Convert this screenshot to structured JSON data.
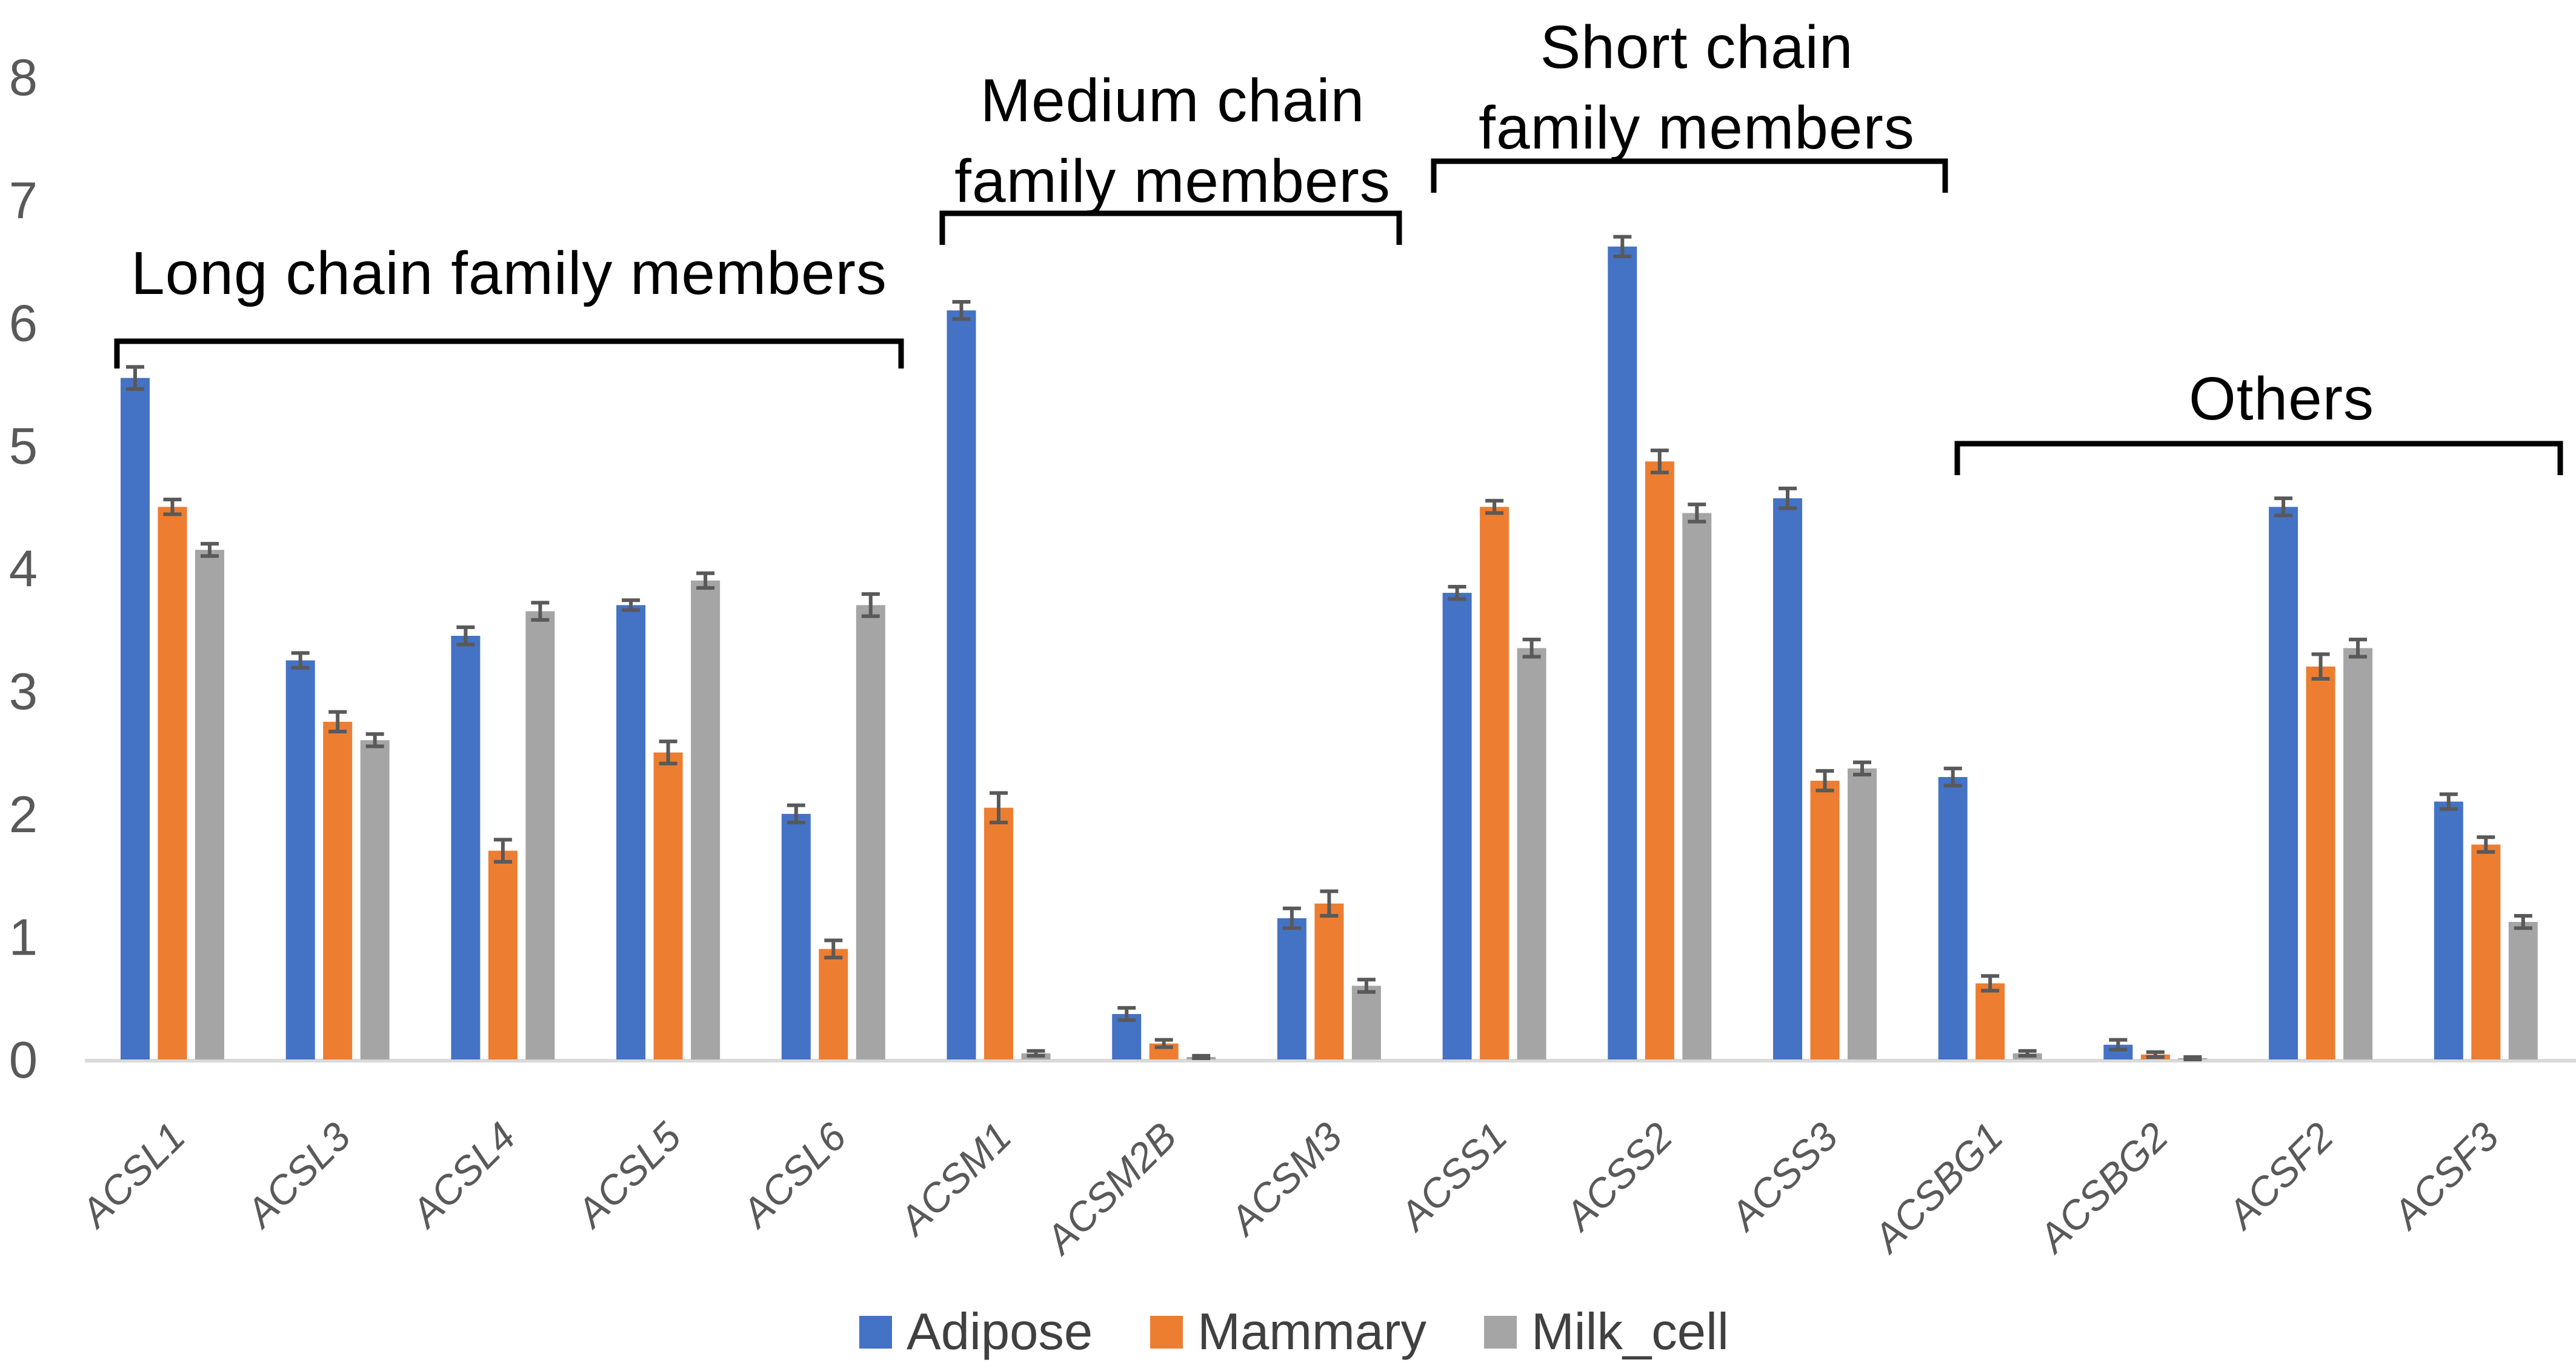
{
  "chart_data": {
    "type": "bar",
    "title": "",
    "xlabel": "",
    "ylabel": "",
    "ylim": [
      0,
      8
    ],
    "yticks": [
      0,
      1,
      2,
      3,
      4,
      5,
      6,
      7,
      8
    ],
    "grid": false,
    "legend_position": "bottom",
    "categories": [
      "ACSL1",
      "ACSL3",
      "ACSL4",
      "ACSL5",
      "ACSL6",
      "ACSM1",
      "ACSM2B",
      "ACSM3",
      "ACSS1",
      "ACSS2",
      "ACSS3",
      "ACSBG1",
      "ACSBG2",
      "ACSF2",
      "ACSF3"
    ],
    "series": [
      {
        "name": "Adipose",
        "color": "#4472C4",
        "values": [
          5.55,
          3.25,
          3.45,
          3.7,
          2.0,
          6.1,
          0.37,
          1.15,
          3.8,
          6.62,
          4.57,
          2.3,
          0.12,
          4.5,
          2.1
        ],
        "errors": [
          0.09,
          0.06,
          0.07,
          0.04,
          0.07,
          0.07,
          0.05,
          0.08,
          0.05,
          0.08,
          0.08,
          0.07,
          0.04,
          0.07,
          0.06
        ]
      },
      {
        "name": "Mammary",
        "color": "#ED7D31",
        "values": [
          4.5,
          2.75,
          1.7,
          2.5,
          0.9,
          2.05,
          0.13,
          1.27,
          4.5,
          4.87,
          2.27,
          0.62,
          0.04,
          3.2,
          1.75
        ],
        "errors": [
          0.06,
          0.08,
          0.09,
          0.09,
          0.07,
          0.12,
          0.03,
          0.1,
          0.05,
          0.09,
          0.08,
          0.06,
          0.02,
          0.1,
          0.06
        ]
      },
      {
        "name": "Milk_cell",
        "color": "#A5A5A5",
        "values": [
          4.15,
          2.6,
          3.65,
          3.9,
          3.7,
          0.05,
          0.02,
          0.6,
          3.35,
          4.45,
          2.37,
          0.05,
          0.01,
          3.35,
          1.12
        ],
        "errors": [
          0.05,
          0.05,
          0.07,
          0.06,
          0.09,
          0.02,
          0.01,
          0.05,
          0.07,
          0.07,
          0.05,
          0.02,
          0.01,
          0.07,
          0.05
        ]
      }
    ],
    "group_annotations": [
      {
        "id": "long-chain",
        "lines": [
          "Long chain family members"
        ],
        "from": "ACSL1",
        "to": "ACSL6"
      },
      {
        "id": "medium-chain",
        "lines": [
          "Medium chain",
          "family members"
        ],
        "from": "ACSM1",
        "to": "ACSM3"
      },
      {
        "id": "short-chain",
        "lines": [
          "Short chain",
          "family members"
        ],
        "from": "ACSS1",
        "to": "ACSS3"
      },
      {
        "id": "others",
        "lines": [
          "Others"
        ],
        "from": "ACSBG1",
        "to": "ACSF3"
      }
    ],
    "colors": {
      "axis_line": "#D9D9D9",
      "tick_label": "#595959",
      "x_label": "#595959",
      "error_bar": "#595959",
      "annotation_text": "#000000",
      "bracket": "#000000",
      "legend_text": "#404040",
      "background": "#FFFFFF"
    }
  }
}
